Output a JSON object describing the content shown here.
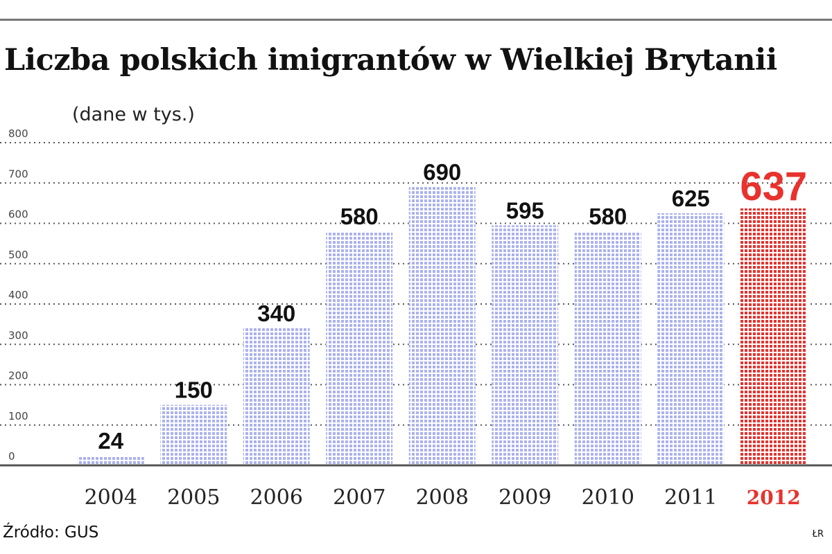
{
  "chart_data": {
    "type": "bar",
    "title": "Liczba polskich imigrantów w Wielkiej Brytanii",
    "subtitle": "(dane w tys.)",
    "categories": [
      "2004",
      "2005",
      "2006",
      "2007",
      "2008",
      "2009",
      "2010",
      "2011",
      "2012"
    ],
    "values": [
      24,
      150,
      340,
      580,
      690,
      595,
      580,
      625,
      637
    ],
    "value_labels": [
      "24",
      "150",
      "340",
      "580",
      "690",
      "595",
      "580",
      "625",
      "637"
    ],
    "highlight_index": 8,
    "ylim": [
      0,
      800
    ],
    "yticks": [
      0,
      100,
      200,
      300,
      400,
      500,
      600,
      700,
      800
    ],
    "grid": true,
    "colors": {
      "bar": "#aab2ef",
      "highlight": "#e8322d",
      "grid": "#555555",
      "axis": "#555555"
    }
  },
  "footer": {
    "source": "Źródło: GUS",
    "credit": "ŁR"
  }
}
